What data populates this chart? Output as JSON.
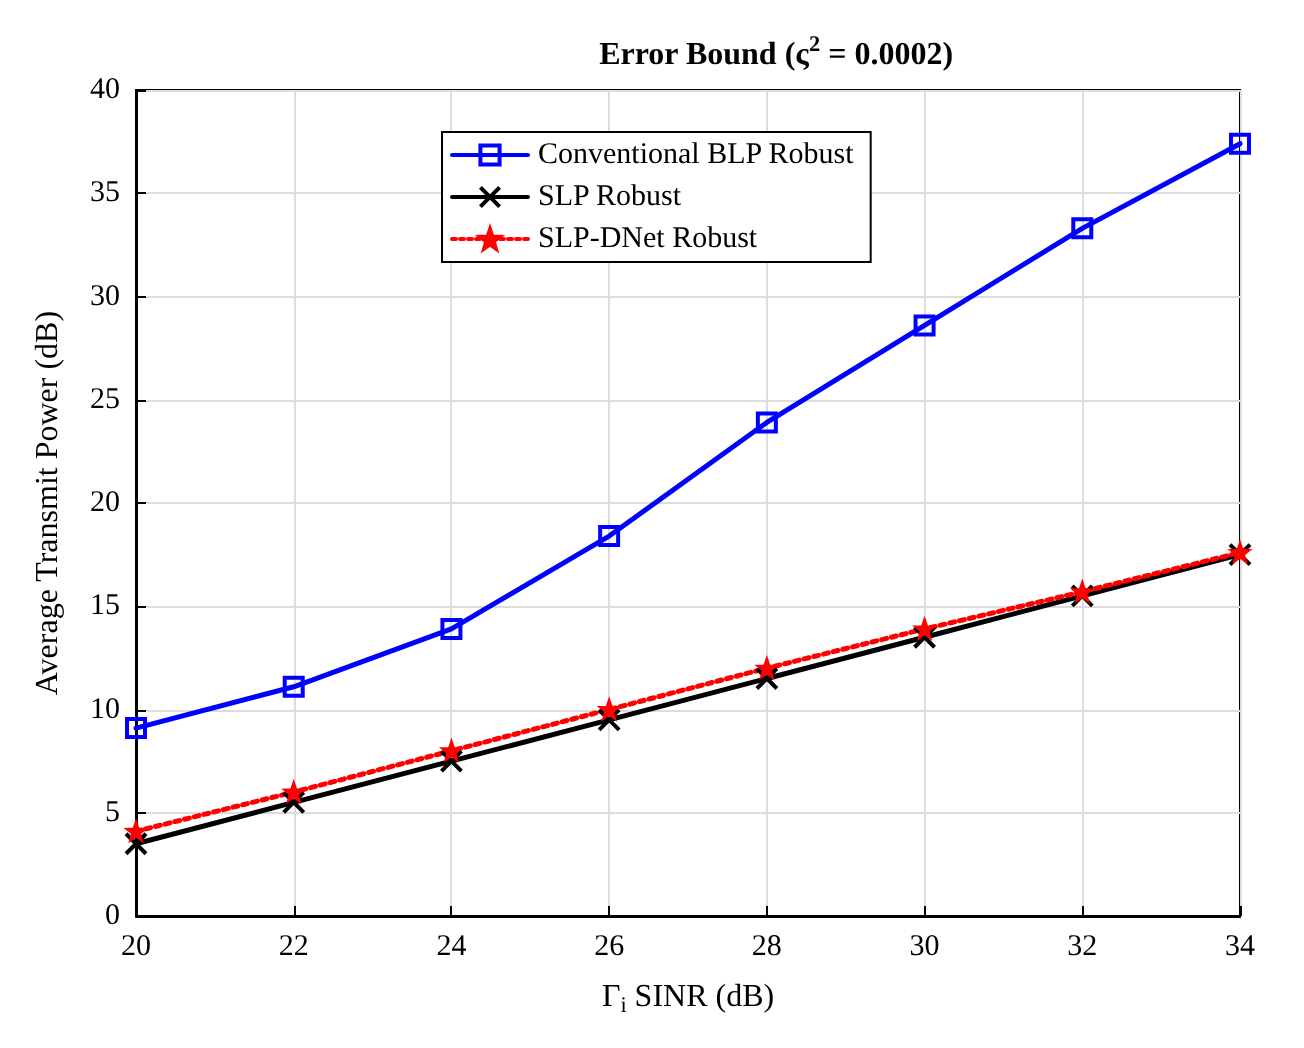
{
  "chart_data": {
    "type": "line",
    "title": "Error Bound (ς$^{2}$ = 0.0002)",
    "xlabel": "Γ$_{i}$ SINR (dB)",
    "ylabel": "Average Transmit Power (dB)",
    "x": [
      20,
      22,
      24,
      26,
      28,
      30,
      32,
      34
    ],
    "series": [
      {
        "name": "Conventional BLP Robust",
        "color": "#0000ff",
        "marker": "square",
        "line_style": "solid",
        "values": [
          9.1,
          11.1,
          13.9,
          18.4,
          23.9,
          28.6,
          33.3,
          37.4
        ]
      },
      {
        "name": "SLP Robust",
        "color": "#000000",
        "marker": "cross",
        "line_style": "solid",
        "values": [
          3.5,
          5.5,
          7.5,
          9.5,
          11.5,
          13.5,
          15.5,
          17.5
        ]
      },
      {
        "name": "SLP-DNet Robust",
        "color": "#ff0000",
        "marker": "star",
        "line_style": "dotted",
        "values": [
          4.1,
          6.0,
          8.0,
          10.0,
          12.0,
          13.9,
          15.7,
          17.6
        ]
      }
    ],
    "xlim": [
      20,
      34
    ],
    "xticks": [
      20,
      22,
      24,
      26,
      28,
      30,
      32,
      34
    ],
    "ylim": [
      0,
      40
    ],
    "yticks": [
      0,
      5,
      10,
      15,
      20,
      25,
      30,
      35,
      40
    ],
    "grid": true,
    "legend": "top"
  }
}
